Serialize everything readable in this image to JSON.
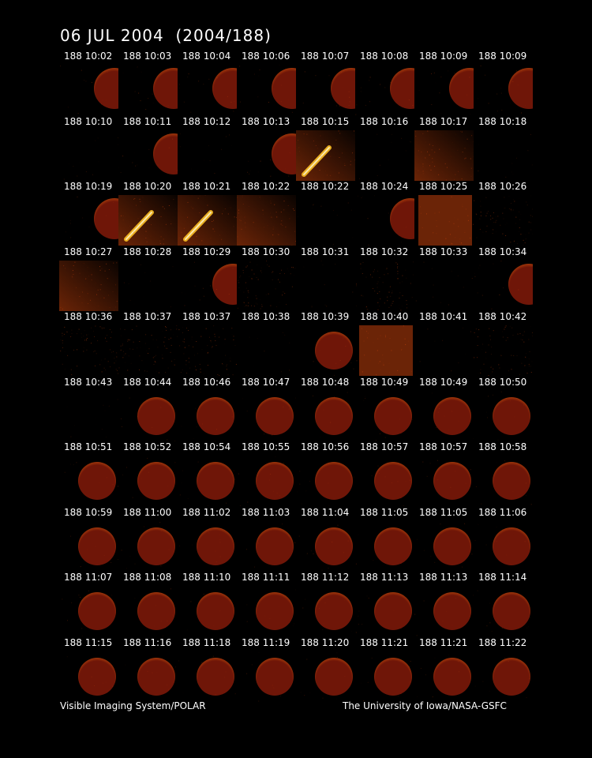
{
  "title": "06 JUL 2004  (2004/188)",
  "footer_left": "Visible Imaging System/POLAR",
  "footer_right": "The University of Iowa/NASA-GSFC",
  "colors": {
    "background": "#000000",
    "disk": "#6f1608",
    "glow": "#c2410c",
    "aurora": "#fbbf24"
  },
  "rows": [
    {
      "labels": [
        "188 10:02",
        "188 10:03",
        "188 10:04",
        "188 10:06",
        "188 10:07",
        "188 10:08",
        "188 10:09",
        "188 10:09"
      ],
      "panels": [
        "half",
        "half",
        "half",
        "half",
        "half",
        "half",
        "half",
        "half"
      ]
    },
    {
      "labels": [
        "188 10:10",
        "188 10:11",
        "188 10:12",
        "188 10:13",
        "188 10:15",
        "188 10:16",
        "188 10:17",
        "188 10:18"
      ],
      "panels": [
        "dark",
        "half",
        "dark",
        "half",
        "aurora",
        "dark",
        "haze",
        "dark"
      ]
    },
    {
      "labels": [
        "188 10:19",
        "188 10:20",
        "188 10:21",
        "188 10:22",
        "188 10:22",
        "188 10:24",
        "188 10:25",
        "188 10:26"
      ],
      "panels": [
        "half",
        "aurora",
        "aurora",
        "haze",
        "dark",
        "half",
        "bright",
        "noise"
      ]
    },
    {
      "labels": [
        "188 10:27",
        "188 10:28",
        "188 10:29",
        "188 10:30",
        "188 10:31",
        "188 10:32",
        "188 10:33",
        "188 10:34"
      ],
      "panels": [
        "haze",
        "dark",
        "half",
        "noise",
        "dark",
        "noise",
        "dark",
        "half"
      ]
    },
    {
      "labels": [
        "188 10:36",
        "188 10:37",
        "188 10:37",
        "188 10:38",
        "188 10:39",
        "188 10:40",
        "188 10:41",
        "188 10:42"
      ],
      "panels": [
        "noise",
        "noise",
        "noise",
        "dark",
        "full",
        "bright",
        "dark",
        "noise"
      ]
    },
    {
      "labels": [
        "188 10:43",
        "188 10:44",
        "188 10:46",
        "188 10:47",
        "188 10:48",
        "188 10:49",
        "188 10:49",
        "188 10:50"
      ],
      "panels": [
        "dark",
        "full",
        "full",
        "full",
        "full",
        "full",
        "full",
        "full"
      ]
    },
    {
      "labels": [
        "188 10:51",
        "188 10:52",
        "188 10:54",
        "188 10:55",
        "188 10:56",
        "188 10:57",
        "188 10:57",
        "188 10:58"
      ],
      "panels": [
        "full",
        "full",
        "full",
        "full",
        "full",
        "full",
        "full",
        "full"
      ]
    },
    {
      "labels": [
        "188 10:59",
        "188 11:00",
        "188 11:02",
        "188 11:03",
        "188 11:04",
        "188 11:05",
        "188 11:05",
        "188 11:06"
      ],
      "panels": [
        "full",
        "full",
        "full",
        "full",
        "full",
        "full",
        "full",
        "full"
      ]
    },
    {
      "labels": [
        "188 11:07",
        "188 11:08",
        "188 11:10",
        "188 11:11",
        "188 11:12",
        "188 11:13",
        "188 11:13",
        "188 11:14"
      ],
      "panels": [
        "full",
        "full",
        "full",
        "full",
        "full",
        "full",
        "full",
        "full"
      ]
    },
    {
      "labels": [
        "188 11:15",
        "188 11:16",
        "188 11:18",
        "188 11:19",
        "188 11:20",
        "188 11:21",
        "188 11:21",
        "188 11:22"
      ],
      "panels": [
        "full",
        "full",
        "full",
        "full",
        "full",
        "full",
        "full",
        "full"
      ]
    }
  ]
}
